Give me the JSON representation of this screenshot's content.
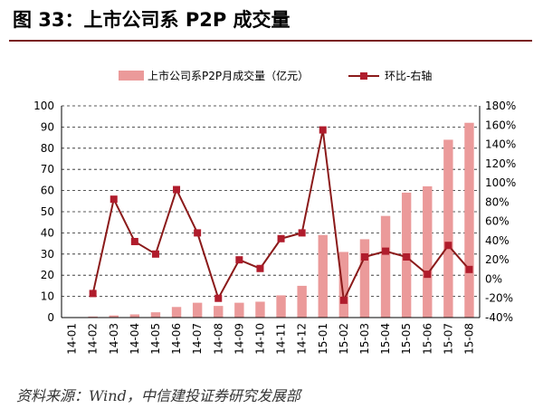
{
  "header": {
    "title": "图 33：上市公司系 P2P 成交量"
  },
  "footer": {
    "source": "资料来源：Wind，中信建投证券研究发展部"
  },
  "colors": {
    "bar": "#eb9a9a",
    "line": "#8b1a1a",
    "marker": "#b01c2c",
    "title_rule": "#7a1f1f"
  },
  "chart_data": {
    "type": "bar",
    "categories": [
      "14-01",
      "14-02",
      "14-03",
      "14-04",
      "14-05",
      "14-06",
      "14-07",
      "14-08",
      "14-09",
      "14-10",
      "14-11",
      "14-12",
      "15-01",
      "15-02",
      "15-03",
      "15-04",
      "15-05",
      "15-06",
      "15-07",
      "15-08"
    ],
    "series": [
      {
        "name": "上市公司系P2P月成交量（亿元）",
        "type": "bar",
        "axis": "left",
        "values": [
          0.2,
          0.5,
          1,
          1.5,
          2.5,
          5,
          7,
          5.5,
          7,
          7.5,
          10.5,
          15,
          39,
          31,
          37,
          48,
          59,
          62,
          84,
          92
        ]
      },
      {
        "name": "环比-右轴",
        "type": "line",
        "axis": "right",
        "values": [
          null,
          -15,
          83,
          39,
          26,
          93,
          48,
          -20,
          20,
          11,
          42,
          48,
          155,
          -22,
          23,
          29,
          23,
          5,
          35,
          10
        ]
      }
    ],
    "y_left": {
      "min": 0,
      "max": 100,
      "step": 10,
      "ticks": [
        "0",
        "10",
        "20",
        "30",
        "40",
        "50",
        "60",
        "70",
        "80",
        "90",
        "100"
      ]
    },
    "y_right": {
      "min": -40,
      "max": 180,
      "step": 20,
      "ticks": [
        "-40%",
        "-20%",
        "0%",
        "20%",
        "40%",
        "60%",
        "80%",
        "100%",
        "120%",
        "140%",
        "160%",
        "180%"
      ]
    },
    "grid": "horizontal-dashed",
    "legend_position": "top"
  }
}
